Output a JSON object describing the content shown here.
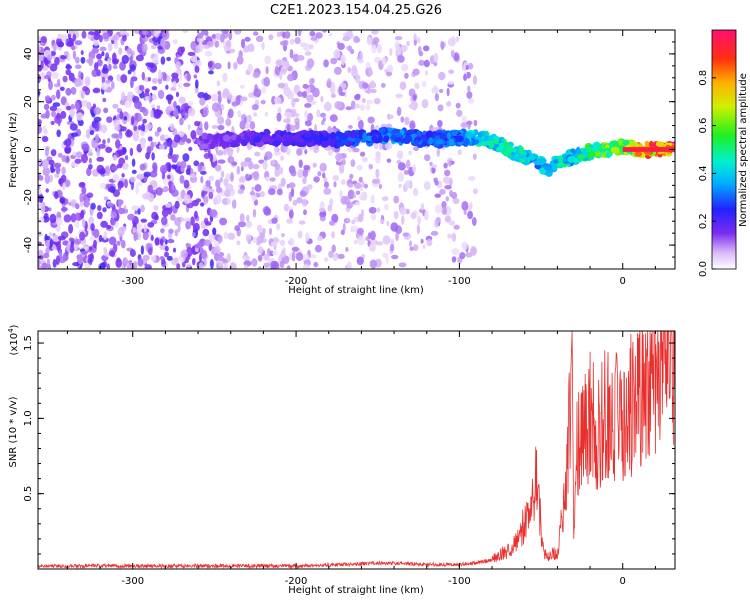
{
  "title": "C2E1.2023.154.04.25.G26",
  "chart_data": [
    {
      "type": "heatmap",
      "xlabel": "Height of straight line (km)",
      "ylabel": "Frequency (Hz)",
      "xlim": [
        -358,
        32
      ],
      "ylim": [
        -50,
        50
      ],
      "x_ticks": [
        -300,
        -200,
        -100,
        0
      ],
      "x_tick_labels": [
        "-300",
        "-200",
        "-100",
        "0"
      ],
      "y_ticks": [
        40,
        20,
        0,
        -20,
        -40
      ],
      "y_tick_labels": [
        "40",
        "20",
        "0",
        "-20",
        "-40"
      ],
      "colorbar": {
        "label": "Normalized spectral amplitude",
        "range": [
          0,
          1
        ],
        "ticks": [
          0.0,
          0.2,
          0.4,
          0.6,
          0.8
        ],
        "tick_labels": [
          "0.0",
          "0.2",
          "0.4",
          "0.6",
          "0.8"
        ]
      },
      "ridge": {
        "x": [
          -260,
          -220,
          -180,
          -160,
          -140,
          -120,
          -100,
          -90,
          -80,
          -70,
          -60,
          -50,
          -45,
          -40,
          -30,
          -20,
          -10,
          0,
          10,
          20,
          32
        ],
        "frequency": [
          3,
          5,
          4,
          5,
          6,
          4,
          5,
          5,
          4,
          0,
          -3,
          -6,
          -10,
          -5,
          -3,
          -1,
          0,
          1,
          0,
          0,
          0
        ],
        "amplitude": [
          0.15,
          0.2,
          0.25,
          0.3,
          0.35,
          0.3,
          0.35,
          0.45,
          0.45,
          0.5,
          0.45,
          0.4,
          0.4,
          0.45,
          0.45,
          0.55,
          0.6,
          0.7,
          0.8,
          0.9,
          0.95
        ]
      },
      "grid": false
    },
    {
      "type": "line",
      "xlabel": "Height of straight line (km)",
      "ylabel": "SNR (10 * v/v)",
      "y_multiplier": "(x10",
      "y_multiplier_exp": "4",
      "y_multiplier_close": ")",
      "xlim": [
        -358,
        32
      ],
      "ylim": [
        0,
        1.58
      ],
      "x_ticks": [
        -300,
        -200,
        -100,
        0
      ],
      "x_tick_labels": [
        "-300",
        "-200",
        "-100",
        "0"
      ],
      "y_ticks": [
        0.5,
        1.0,
        1.5
      ],
      "y_tick_labels": [
        "0.5",
        "1.0",
        "1.5"
      ],
      "series": [
        {
          "color": "#e8312f",
          "x": [
            -358,
            -300,
            -250,
            -200,
            -170,
            -150,
            -120,
            -100,
            -90,
            -80,
            -75,
            -70,
            -65,
            -60,
            -56,
            -52,
            -50,
            -48,
            -45,
            -40,
            -36,
            -33,
            -31,
            -30,
            -28,
            -25,
            -20,
            -15,
            -10,
            -5,
            0,
            5,
            10,
            15,
            20,
            25,
            32
          ],
          "y": [
            0.02,
            0.02,
            0.02,
            0.02,
            0.03,
            0.04,
            0.03,
            0.03,
            0.04,
            0.06,
            0.1,
            0.12,
            0.2,
            0.3,
            0.4,
            0.7,
            0.2,
            0.1,
            0.08,
            0.12,
            0.4,
            0.9,
            1.58,
            0.2,
            0.8,
            1.0,
            1.0,
            0.9,
            1.05,
            1.0,
            1.0,
            1.1,
            1.2,
            1.25,
            1.3,
            1.35,
            1.35
          ]
        }
      ],
      "grid": false
    }
  ]
}
